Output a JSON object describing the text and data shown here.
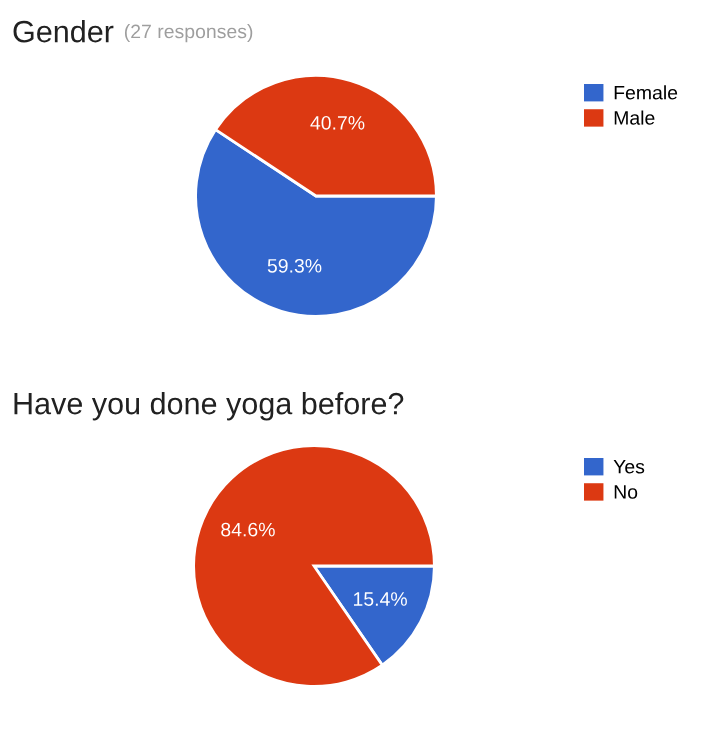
{
  "chart_data": [
    {
      "type": "pie",
      "title": "Gender",
      "subtitle": "(27 responses)",
      "categories": [
        "Female",
        "Male"
      ],
      "values": [
        59.3,
        40.7
      ],
      "colors": [
        "#3366cc",
        "#dc3912"
      ],
      "value_labels": [
        "59.3%",
        "40.7%"
      ],
      "legend": "top right"
    },
    {
      "type": "pie",
      "title": "Have you done yoga before?",
      "categories": [
        "Yes",
        "No"
      ],
      "values": [
        15.4,
        84.6
      ],
      "colors": [
        "#3366cc",
        "#dc3912"
      ],
      "value_labels": [
        "15.4%",
        "84.6%"
      ],
      "legend": "top right"
    }
  ]
}
